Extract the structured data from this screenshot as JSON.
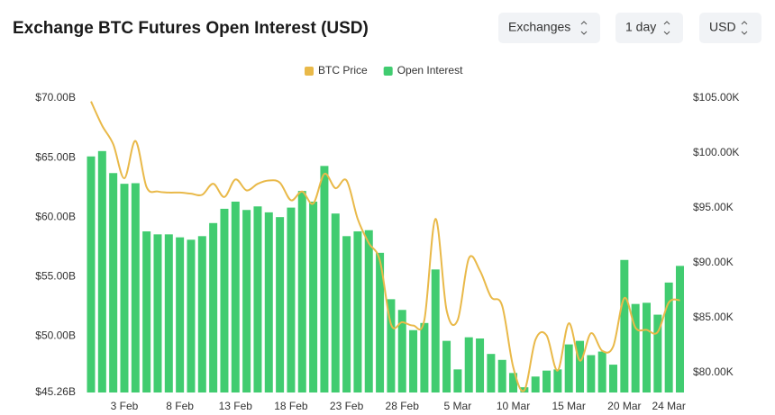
{
  "header": {
    "title": "Exchange BTC Futures Open Interest (USD)",
    "controls": [
      "Exchanges",
      "1 day",
      "USD"
    ]
  },
  "chart_data": {
    "type": "bar",
    "categories": [
      null,
      null,
      null,
      "3 Feb",
      null,
      null,
      null,
      null,
      "8 Feb",
      null,
      null,
      null,
      null,
      "13 Feb",
      null,
      null,
      null,
      null,
      "18 Feb",
      null,
      null,
      null,
      null,
      "23 Feb",
      null,
      null,
      null,
      null,
      "28 Feb",
      null,
      null,
      null,
      null,
      "5 Mar",
      null,
      null,
      null,
      null,
      "10 Mar",
      null,
      null,
      null,
      null,
      "15 Mar",
      null,
      null,
      null,
      null,
      "20 Mar",
      null,
      null,
      null,
      "24 Mar",
      null
    ],
    "series": [
      {
        "name": "BTC Price",
        "color": "#e9b949",
        "type": "line",
        "axis": "y2",
        "values": [
          104.7,
          102.5,
          100.8,
          97.7,
          101.1,
          96.9,
          96.5,
          96.4,
          96.4,
          96.3,
          96.2,
          97.2,
          96.0,
          97.6,
          96.6,
          97.2,
          97.5,
          97.3,
          95.7,
          96.5,
          95.4,
          98.1,
          96.8,
          97.5,
          94.0,
          91.8,
          90.2,
          84.4,
          84.6,
          84.3,
          84.8,
          94.0,
          85.7,
          84.8,
          90.4,
          89.3,
          86.9,
          86.1,
          80.5,
          78.4,
          83.0,
          83.4,
          80.2,
          84.5,
          81.1,
          83.6,
          82.0,
          82.4,
          86.8,
          84.1,
          83.9,
          83.7,
          86.4,
          86.6
        ]
      },
      {
        "name": "Open Interest",
        "color": "#41cc70",
        "type": "bar",
        "values": [
          65.1,
          65.55,
          63.7,
          62.8,
          62.85,
          58.8,
          58.55,
          58.55,
          58.3,
          58.1,
          58.4,
          59.5,
          60.7,
          61.3,
          60.6,
          60.9,
          60.4,
          60.0,
          60.8,
          62.2,
          61.3,
          64.3,
          60.3,
          58.4,
          58.8,
          58.9,
          57.0,
          53.1,
          52.2,
          50.5,
          51.1,
          55.6,
          49.6,
          47.2,
          49.9,
          49.8,
          48.5,
          48.0,
          46.9,
          45.7,
          46.6,
          47.1,
          47.2,
          49.3,
          49.6,
          48.4,
          48.7,
          47.6,
          56.4,
          52.7,
          52.8,
          51.8,
          54.5,
          55.9
        ]
      }
    ],
    "ylim": [
      45.26,
      70
    ],
    "yticks": [
      {
        "value": 45.26,
        "label": "$45.26B"
      },
      {
        "value": 50,
        "label": "$50.00B"
      },
      {
        "value": 55,
        "label": "$55.00B"
      },
      {
        "value": 60,
        "label": "$60.00B"
      },
      {
        "value": 65,
        "label": "$65.00B"
      },
      {
        "value": 70,
        "label": "$70.00B"
      }
    ],
    "y2lim": [
      78.2,
      105
    ],
    "y2ticks": [
      {
        "value": 80,
        "label": "$80.00K"
      },
      {
        "value": 85,
        "label": "$85.00K"
      },
      {
        "value": 90,
        "label": "$90.00K"
      },
      {
        "value": 95,
        "label": "$95.00K"
      },
      {
        "value": 100,
        "label": "$100.00K"
      },
      {
        "value": 105,
        "label": "$105.00K"
      }
    ]
  }
}
